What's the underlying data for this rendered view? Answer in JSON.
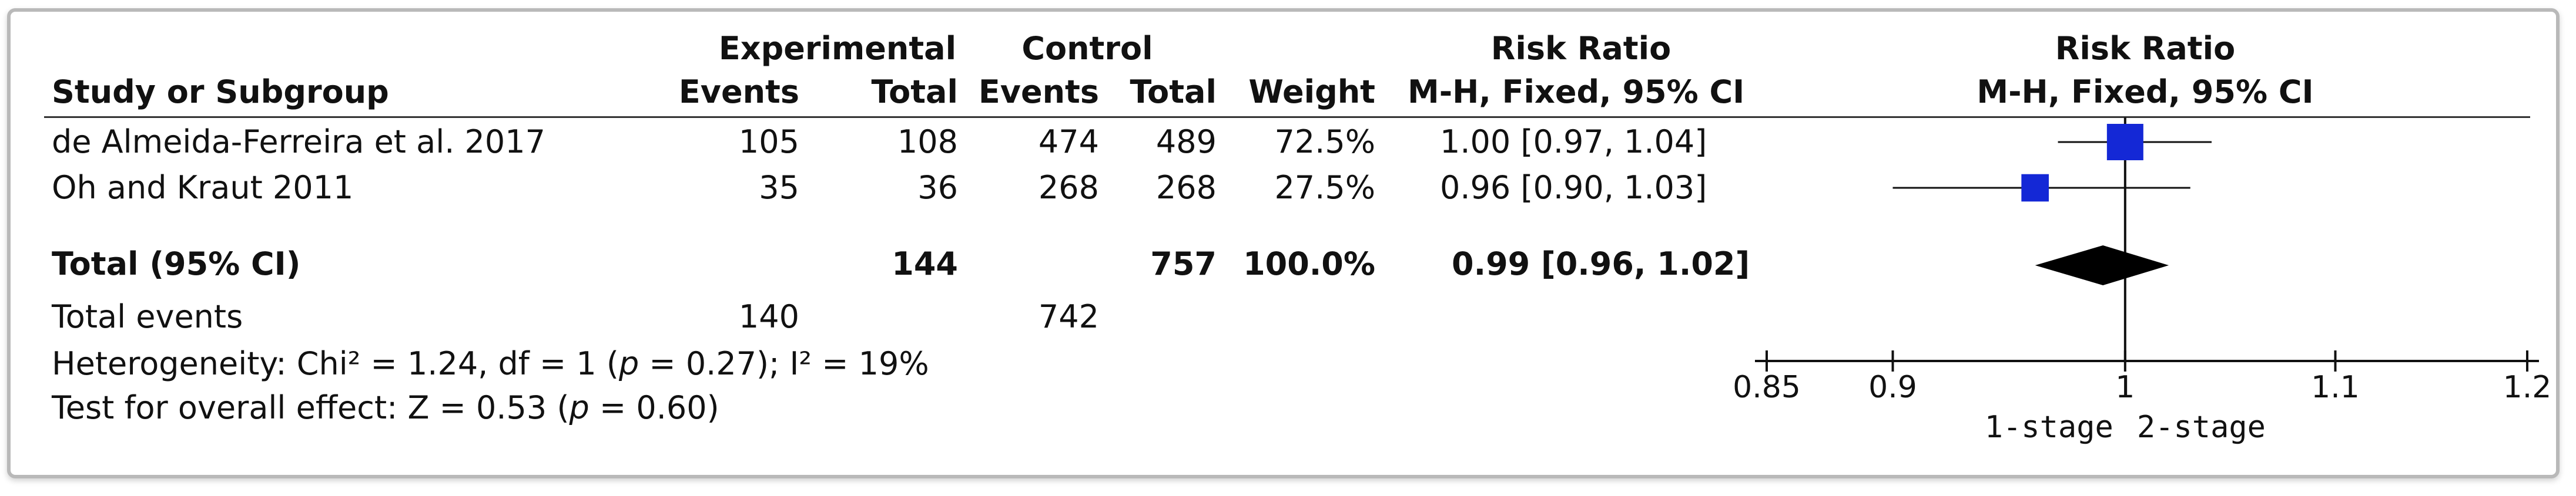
{
  "headers": {
    "study": "Study or Subgroup",
    "experimental": "Experimental",
    "control": "Control",
    "events": "Events",
    "total": "Total",
    "weight": "Weight",
    "risk_ratio": "Risk Ratio",
    "method": "M-H, Fixed, 95% CI",
    "plot_title": "Risk Ratio",
    "plot_method": "M-H, Fixed, 95% CI"
  },
  "studies": [
    {
      "name": "de Almeida-Ferreira et al. 2017",
      "exp_events": "105",
      "exp_total": "108",
      "ctl_events": "474",
      "ctl_total": "489",
      "weight": "72.5%",
      "ci": "1.00 [0.97, 1.04]"
    },
    {
      "name": "Oh and Kraut 2011",
      "exp_events": "35",
      "exp_total": "36",
      "ctl_events": "268",
      "ctl_total": "268",
      "weight": "27.5%",
      "ci": "0.96 [0.90, 1.03]"
    }
  ],
  "total": {
    "label": "Total (95% CI)",
    "exp_total": "144",
    "ctl_total": "757",
    "weight": "100.0%",
    "ci": "0.99 [0.96, 1.02]"
  },
  "total_events": {
    "label": "Total events",
    "exp": "140",
    "ctl": "742"
  },
  "heterogeneity": {
    "prefix": "Heterogeneity: Chi² = 1.24, df = 1 (",
    "p": "p",
    "middle": " = 0.27); I² = 19%"
  },
  "overall_effect": {
    "prefix": "Test for overall effect: Z = 0.53 (",
    "p": "p",
    "suffix": " = 0.60)"
  },
  "chart_data": {
    "type": "forest",
    "title": "Risk Ratio",
    "subtitle": "M-H, Fixed, 95% CI",
    "xlim": [
      0.85,
      1.2
    ],
    "x_ticks": [
      "0.85",
      "0.9",
      "1",
      "1.1",
      "1.2"
    ],
    "x_tick_values": [
      0.85,
      0.9,
      1,
      1.1,
      1.2
    ],
    "scale": "log",
    "xlabel_left": "1-stage",
    "xlabel_right": "2-stage",
    "marker_color": "#1428d6",
    "series": [
      {
        "name": "de Almeida-Ferreira et al. 2017",
        "estimate": 1.0,
        "lower": 0.97,
        "upper": 1.04,
        "weight": 72.5
      },
      {
        "name": "Oh and Kraut 2011",
        "estimate": 0.96,
        "lower": 0.9,
        "upper": 1.03,
        "weight": 27.5
      }
    ],
    "pooled": {
      "estimate": 0.99,
      "lower": 0.96,
      "upper": 1.02
    }
  }
}
